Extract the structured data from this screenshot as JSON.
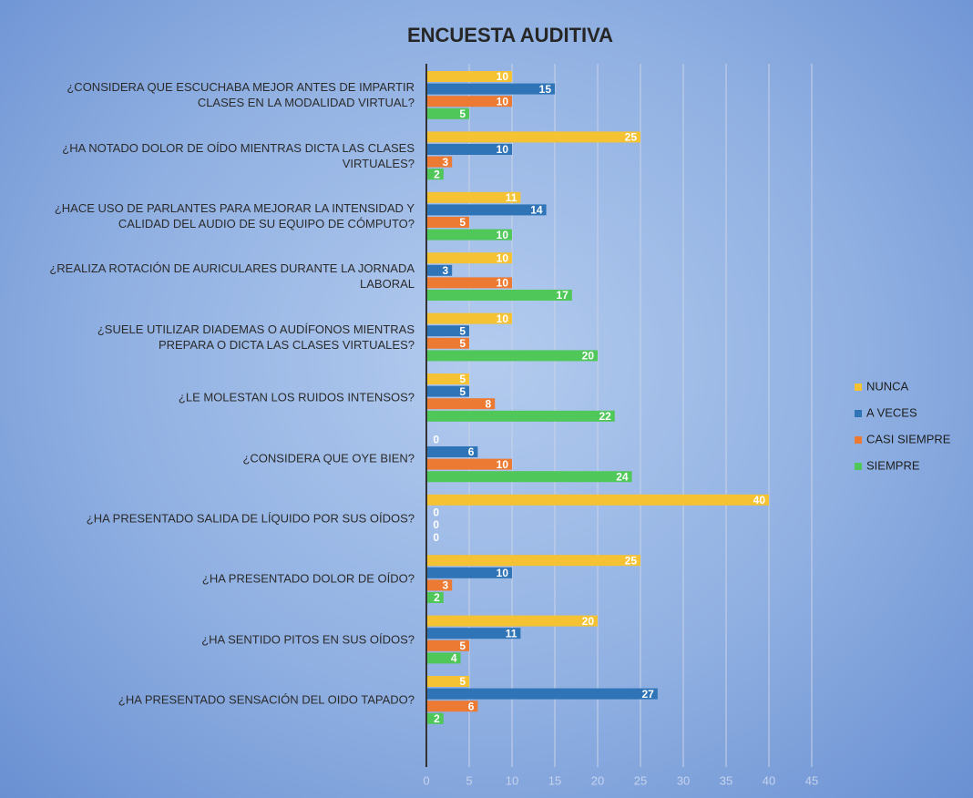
{
  "chart_data": {
    "type": "hbar",
    "title": "ENCUESTA AUDITIVA",
    "categories": [
      "¿CONSIDERA QUE ESCUCHABA MEJOR ANTES DE IMPARTIR CLASES EN LA MODALIDAD VIRTUAL?",
      "¿HA NOTADO DOLOR DE OÍDO MIENTRAS DICTA LAS CLASES VIRTUALES?",
      "¿HACE USO DE PARLANTES PARA MEJORAR LA INTENSIDAD Y CALIDAD DEL AUDIO DE SU EQUIPO DE CÓMPUTO?",
      "¿REALIZA ROTACIÓN DE AURICULARES DURANTE LA JORNADA LABORAL",
      "¿SUELE UTILIZAR DIADEMAS O AUDÍFONOS MIENTRAS PREPARA O DICTA LAS CLASES VIRTUALES?",
      "¿LE MOLESTAN LOS RUIDOS INTENSOS?",
      "¿CONSIDERA QUE OYE BIEN?",
      "¿HA PRESENTADO SALIDA DE LÍQUIDO POR SUS OÍDOS?",
      "¿HA PRESENTADO DOLOR DE OÍDO?",
      "¿HA SENTIDO PITOS EN SUS OÍDOS?",
      "¿HA PRESENTADO SENSACIÓN DEL OIDO TAPADO?"
    ],
    "series": [
      {
        "name": "NUNCA",
        "color": "#f4c232",
        "values": [
          10,
          25,
          11,
          10,
          10,
          5,
          0,
          40,
          25,
          20,
          5
        ]
      },
      {
        "name": "A VECES",
        "color": "#2f74b7",
        "values": [
          15,
          10,
          14,
          3,
          5,
          5,
          6,
          0,
          10,
          11,
          27
        ]
      },
      {
        "name": "CASI SIEMPRE",
        "color": "#ed7a32",
        "values": [
          10,
          3,
          5,
          10,
          5,
          8,
          10,
          0,
          3,
          5,
          6
        ]
      },
      {
        "name": "SIEMPRE",
        "color": "#4fc759",
        "values": [
          5,
          2,
          10,
          17,
          20,
          22,
          24,
          0,
          2,
          4,
          2
        ]
      }
    ],
    "xlim": [
      0,
      45
    ],
    "xticks": [
      0,
      5,
      10,
      15,
      20,
      25,
      30,
      35,
      40,
      45
    ],
    "grid": true,
    "legend": "right"
  }
}
